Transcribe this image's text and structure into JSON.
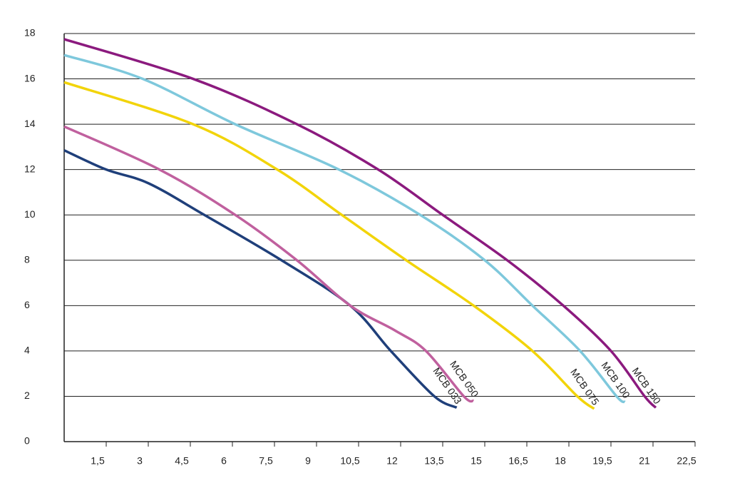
{
  "chart_data": {
    "type": "line",
    "xlim": [
      0,
      22.5
    ],
    "xticks": [
      {
        "value": 1.5,
        "label": "1,5"
      },
      3,
      {
        "value": 4.5,
        "label": "4,5"
      },
      6,
      {
        "value": 7.5,
        "label": "7,5"
      },
      9,
      {
        "value": 10.5,
        "label": "10,5"
      },
      12,
      {
        "value": 13.5,
        "label": "13,5"
      },
      15,
      {
        "value": 16.5,
        "label": "16,5"
      },
      18,
      {
        "value": 19.5,
        "label": "19,5"
      },
      21,
      {
        "value": 22.5,
        "label": "22,5"
      }
    ],
    "ylim": [
      0,
      18
    ],
    "yticks": [
      0,
      2,
      4,
      6,
      8,
      10,
      12,
      14,
      16,
      18
    ],
    "grid": true,
    "series": [
      {
        "name": "MCB 033",
        "color": "#1f3f7a",
        "x": [
          0,
          1.5,
          3,
          5,
          7.75,
          10.2,
          11.65,
          13.2,
          14
        ],
        "values": [
          12.85,
          12,
          11.4,
          10,
          8,
          6,
          4,
          2,
          1.5
        ]
      },
      {
        "name": "MCB 050",
        "color": "#c0609e",
        "x": [
          0,
          3.4,
          6.1,
          8.3,
          10.2,
          11.8,
          12.9,
          14.25,
          14.6
        ],
        "values": [
          13.9,
          12,
          10,
          8,
          6,
          4.9,
          4,
          2,
          1.8
        ]
      },
      {
        "name": "MCB 075",
        "color": "#f2d40a",
        "x": [
          0,
          4.6,
          7.6,
          9.9,
          12.2,
          14.6,
          16.7,
          18.3,
          18.9
        ],
        "values": [
          15.85,
          14,
          12,
          10,
          8,
          6,
          4,
          2,
          1.45
        ]
      },
      {
        "name": "MCB 100",
        "color": "#7ec8dc",
        "x": [
          0,
          2.8,
          6.1,
          9.8,
          12.7,
          15,
          16.7,
          18.4,
          19.7,
          20
        ],
        "values": [
          17.05,
          16,
          14,
          12,
          10,
          8,
          6,
          4,
          2,
          1.75
        ]
      },
      {
        "name": "MCB 150",
        "color": "#8b1a7e",
        "x": [
          0,
          4.6,
          8.3,
          11.2,
          13.5,
          15.8,
          17.8,
          19.5,
          20.7,
          21.1
        ],
        "values": [
          17.75,
          16,
          14,
          12,
          10,
          8,
          6,
          4,
          2,
          1.5
        ]
      }
    ]
  }
}
